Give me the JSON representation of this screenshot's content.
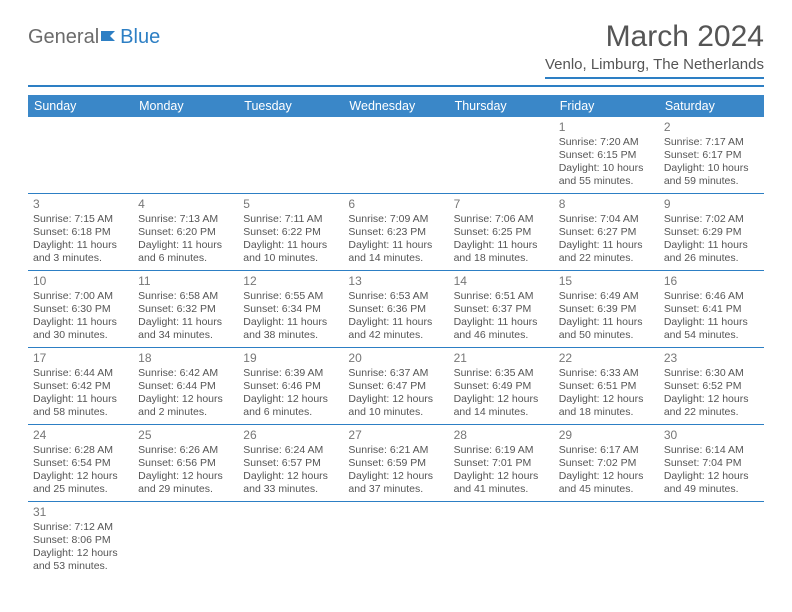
{
  "logo": {
    "text1": "General",
    "text2": "Blue"
  },
  "title": {
    "month": "March 2024",
    "location": "Venlo, Limburg, The Netherlands"
  },
  "colors": {
    "accent": "#2d7fc4",
    "header_bg": "#3a87c8",
    "text": "#555555"
  },
  "weekdays": [
    "Sunday",
    "Monday",
    "Tuesday",
    "Wednesday",
    "Thursday",
    "Friday",
    "Saturday"
  ],
  "weeks": [
    [
      null,
      null,
      null,
      null,
      null,
      {
        "d": "1",
        "sr": "Sunrise: 7:20 AM",
        "ss": "Sunset: 6:15 PM",
        "dl1": "Daylight: 10 hours",
        "dl2": "and 55 minutes."
      },
      {
        "d": "2",
        "sr": "Sunrise: 7:17 AM",
        "ss": "Sunset: 6:17 PM",
        "dl1": "Daylight: 10 hours",
        "dl2": "and 59 minutes."
      }
    ],
    [
      {
        "d": "3",
        "sr": "Sunrise: 7:15 AM",
        "ss": "Sunset: 6:18 PM",
        "dl1": "Daylight: 11 hours",
        "dl2": "and 3 minutes."
      },
      {
        "d": "4",
        "sr": "Sunrise: 7:13 AM",
        "ss": "Sunset: 6:20 PM",
        "dl1": "Daylight: 11 hours",
        "dl2": "and 6 minutes."
      },
      {
        "d": "5",
        "sr": "Sunrise: 7:11 AM",
        "ss": "Sunset: 6:22 PM",
        "dl1": "Daylight: 11 hours",
        "dl2": "and 10 minutes."
      },
      {
        "d": "6",
        "sr": "Sunrise: 7:09 AM",
        "ss": "Sunset: 6:23 PM",
        "dl1": "Daylight: 11 hours",
        "dl2": "and 14 minutes."
      },
      {
        "d": "7",
        "sr": "Sunrise: 7:06 AM",
        "ss": "Sunset: 6:25 PM",
        "dl1": "Daylight: 11 hours",
        "dl2": "and 18 minutes."
      },
      {
        "d": "8",
        "sr": "Sunrise: 7:04 AM",
        "ss": "Sunset: 6:27 PM",
        "dl1": "Daylight: 11 hours",
        "dl2": "and 22 minutes."
      },
      {
        "d": "9",
        "sr": "Sunrise: 7:02 AM",
        "ss": "Sunset: 6:29 PM",
        "dl1": "Daylight: 11 hours",
        "dl2": "and 26 minutes."
      }
    ],
    [
      {
        "d": "10",
        "sr": "Sunrise: 7:00 AM",
        "ss": "Sunset: 6:30 PM",
        "dl1": "Daylight: 11 hours",
        "dl2": "and 30 minutes."
      },
      {
        "d": "11",
        "sr": "Sunrise: 6:58 AM",
        "ss": "Sunset: 6:32 PM",
        "dl1": "Daylight: 11 hours",
        "dl2": "and 34 minutes."
      },
      {
        "d": "12",
        "sr": "Sunrise: 6:55 AM",
        "ss": "Sunset: 6:34 PM",
        "dl1": "Daylight: 11 hours",
        "dl2": "and 38 minutes."
      },
      {
        "d": "13",
        "sr": "Sunrise: 6:53 AM",
        "ss": "Sunset: 6:36 PM",
        "dl1": "Daylight: 11 hours",
        "dl2": "and 42 minutes."
      },
      {
        "d": "14",
        "sr": "Sunrise: 6:51 AM",
        "ss": "Sunset: 6:37 PM",
        "dl1": "Daylight: 11 hours",
        "dl2": "and 46 minutes."
      },
      {
        "d": "15",
        "sr": "Sunrise: 6:49 AM",
        "ss": "Sunset: 6:39 PM",
        "dl1": "Daylight: 11 hours",
        "dl2": "and 50 minutes."
      },
      {
        "d": "16",
        "sr": "Sunrise: 6:46 AM",
        "ss": "Sunset: 6:41 PM",
        "dl1": "Daylight: 11 hours",
        "dl2": "and 54 minutes."
      }
    ],
    [
      {
        "d": "17",
        "sr": "Sunrise: 6:44 AM",
        "ss": "Sunset: 6:42 PM",
        "dl1": "Daylight: 11 hours",
        "dl2": "and 58 minutes."
      },
      {
        "d": "18",
        "sr": "Sunrise: 6:42 AM",
        "ss": "Sunset: 6:44 PM",
        "dl1": "Daylight: 12 hours",
        "dl2": "and 2 minutes."
      },
      {
        "d": "19",
        "sr": "Sunrise: 6:39 AM",
        "ss": "Sunset: 6:46 PM",
        "dl1": "Daylight: 12 hours",
        "dl2": "and 6 minutes."
      },
      {
        "d": "20",
        "sr": "Sunrise: 6:37 AM",
        "ss": "Sunset: 6:47 PM",
        "dl1": "Daylight: 12 hours",
        "dl2": "and 10 minutes."
      },
      {
        "d": "21",
        "sr": "Sunrise: 6:35 AM",
        "ss": "Sunset: 6:49 PM",
        "dl1": "Daylight: 12 hours",
        "dl2": "and 14 minutes."
      },
      {
        "d": "22",
        "sr": "Sunrise: 6:33 AM",
        "ss": "Sunset: 6:51 PM",
        "dl1": "Daylight: 12 hours",
        "dl2": "and 18 minutes."
      },
      {
        "d": "23",
        "sr": "Sunrise: 6:30 AM",
        "ss": "Sunset: 6:52 PM",
        "dl1": "Daylight: 12 hours",
        "dl2": "and 22 minutes."
      }
    ],
    [
      {
        "d": "24",
        "sr": "Sunrise: 6:28 AM",
        "ss": "Sunset: 6:54 PM",
        "dl1": "Daylight: 12 hours",
        "dl2": "and 25 minutes."
      },
      {
        "d": "25",
        "sr": "Sunrise: 6:26 AM",
        "ss": "Sunset: 6:56 PM",
        "dl1": "Daylight: 12 hours",
        "dl2": "and 29 minutes."
      },
      {
        "d": "26",
        "sr": "Sunrise: 6:24 AM",
        "ss": "Sunset: 6:57 PM",
        "dl1": "Daylight: 12 hours",
        "dl2": "and 33 minutes."
      },
      {
        "d": "27",
        "sr": "Sunrise: 6:21 AM",
        "ss": "Sunset: 6:59 PM",
        "dl1": "Daylight: 12 hours",
        "dl2": "and 37 minutes."
      },
      {
        "d": "28",
        "sr": "Sunrise: 6:19 AM",
        "ss": "Sunset: 7:01 PM",
        "dl1": "Daylight: 12 hours",
        "dl2": "and 41 minutes."
      },
      {
        "d": "29",
        "sr": "Sunrise: 6:17 AM",
        "ss": "Sunset: 7:02 PM",
        "dl1": "Daylight: 12 hours",
        "dl2": "and 45 minutes."
      },
      {
        "d": "30",
        "sr": "Sunrise: 6:14 AM",
        "ss": "Sunset: 7:04 PM",
        "dl1": "Daylight: 12 hours",
        "dl2": "and 49 minutes."
      }
    ],
    [
      {
        "d": "31",
        "sr": "Sunrise: 7:12 AM",
        "ss": "Sunset: 8:06 PM",
        "dl1": "Daylight: 12 hours",
        "dl2": "and 53 minutes."
      },
      null,
      null,
      null,
      null,
      null,
      null
    ]
  ]
}
